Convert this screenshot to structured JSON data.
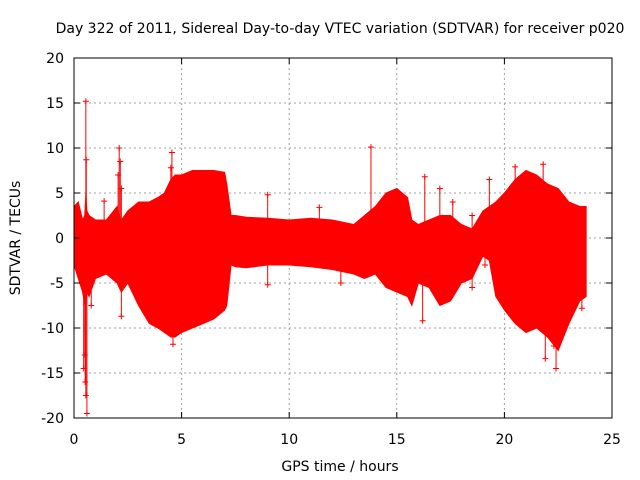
{
  "colors": {
    "series": "#ff0000",
    "grid": "#a0a0a0",
    "axis": "#000000"
  },
  "chart_data": {
    "type": "scatter",
    "title": "Day 322 of 2011, Sidereal Day-to-day VTEC variation (SDTVAR) for receiver p020",
    "xlabel": "GPS time / hours",
    "ylabel": "SDTVAR / TECUs",
    "xlim": [
      0,
      25
    ],
    "ylim": [
      -20,
      20
    ],
    "xticks": [
      0,
      5,
      10,
      15,
      20,
      25
    ],
    "yticks": [
      -20,
      -15,
      -10,
      -5,
      0,
      5,
      10,
      15,
      20
    ],
    "grid": true,
    "series": [
      {
        "name": "SDTVAR",
        "marker": "+",
        "envelope": {
          "x": [
            0.0,
            0.2,
            0.4,
            0.5,
            0.55,
            0.6,
            0.7,
            1.0,
            1.5,
            2.0,
            2.2,
            2.5,
            3.0,
            3.5,
            3.9,
            4.2,
            4.5,
            4.7,
            5.0,
            5.5,
            6.0,
            6.5,
            7.0,
            7.1,
            7.3,
            7.5,
            8.0,
            9.0,
            10.0,
            11.0,
            12.0,
            13.0,
            13.5,
            14.0,
            14.5,
            15.0,
            15.5,
            15.7,
            16.0,
            16.5,
            17.0,
            17.5,
            18.0,
            18.5,
            19.0,
            19.3,
            19.6,
            20.0,
            20.5,
            21.0,
            21.5,
            22.0,
            22.5,
            23.0,
            23.5,
            23.8
          ],
          "upper": [
            3.5,
            4.0,
            2.0,
            2.5,
            5.0,
            3.0,
            2.5,
            2.0,
            2.0,
            3.5,
            2.0,
            3.0,
            4.0,
            4.0,
            4.5,
            5.0,
            6.5,
            7.0,
            7.0,
            7.5,
            7.5,
            7.5,
            7.3,
            6.0,
            2.5,
            2.5,
            2.3,
            2.2,
            2.0,
            2.2,
            2.0,
            1.5,
            2.5,
            3.5,
            5.0,
            5.5,
            4.5,
            2.0,
            1.5,
            2.0,
            2.5,
            2.5,
            1.5,
            1.0,
            3.0,
            3.5,
            4.0,
            5.0,
            6.5,
            7.5,
            7.0,
            6.0,
            5.5,
            4.0,
            3.5,
            3.5
          ],
          "lower": [
            -3.0,
            -4.5,
            -6.0,
            -7.5,
            -7.0,
            -6.0,
            -6.5,
            -4.5,
            -4.0,
            -5.0,
            -6.0,
            -5.0,
            -7.5,
            -9.5,
            -10.0,
            -10.5,
            -11.0,
            -11.0,
            -10.5,
            -10.0,
            -9.5,
            -9.0,
            -8.0,
            -7.5,
            -3.0,
            -3.2,
            -3.3,
            -3.0,
            -3.0,
            -3.2,
            -3.5,
            -4.0,
            -4.5,
            -4.0,
            -5.5,
            -6.0,
            -6.5,
            -7.5,
            -5.0,
            -5.5,
            -7.5,
            -7.0,
            -5.0,
            -4.5,
            -2.0,
            -2.5,
            -6.5,
            -8.0,
            -9.5,
            -10.5,
            -10.0,
            -11.0,
            -12.5,
            -9.5,
            -7.0,
            -6.5
          ]
        },
        "points": [
          {
            "x": 0.55,
            "y": 15.2
          },
          {
            "x": 0.57,
            "y": 8.7
          },
          {
            "x": 0.5,
            "y": -13.0
          },
          {
            "x": 0.55,
            "y": -17.5
          },
          {
            "x": 0.6,
            "y": -19.5
          },
          {
            "x": 0.45,
            "y": -14.5
          },
          {
            "x": 0.52,
            "y": -16.0
          },
          {
            "x": 1.4,
            "y": 4.1
          },
          {
            "x": 2.1,
            "y": 10.0
          },
          {
            "x": 2.15,
            "y": 8.5
          },
          {
            "x": 2.05,
            "y": 7.0
          },
          {
            "x": 2.2,
            "y": 5.5
          },
          {
            "x": 2.2,
            "y": -8.7
          },
          {
            "x": 0.8,
            "y": -7.5
          },
          {
            "x": 4.55,
            "y": 9.5
          },
          {
            "x": 4.5,
            "y": 7.8
          },
          {
            "x": 4.6,
            "y": -11.8
          },
          {
            "x": 9.0,
            "y": 4.8
          },
          {
            "x": 9.0,
            "y": -5.2
          },
          {
            "x": 11.4,
            "y": 3.4
          },
          {
            "x": 12.4,
            "y": -5.0
          },
          {
            "x": 13.8,
            "y": 10.1
          },
          {
            "x": 16.3,
            "y": 6.8
          },
          {
            "x": 16.2,
            "y": -9.2
          },
          {
            "x": 17.0,
            "y": 5.5
          },
          {
            "x": 17.6,
            "y": 4.0
          },
          {
            "x": 18.5,
            "y": 2.5
          },
          {
            "x": 18.5,
            "y": -5.5
          },
          {
            "x": 19.3,
            "y": 6.5
          },
          {
            "x": 19.1,
            "y": -3.0
          },
          {
            "x": 21.8,
            "y": 8.2
          },
          {
            "x": 21.9,
            "y": -13.4
          },
          {
            "x": 22.4,
            "y": -14.5
          },
          {
            "x": 22.3,
            "y": -12.0
          },
          {
            "x": 20.5,
            "y": 7.9
          },
          {
            "x": 23.6,
            "y": -7.8
          },
          {
            "x": 23.65,
            "y": 2.5
          }
        ]
      }
    ]
  }
}
